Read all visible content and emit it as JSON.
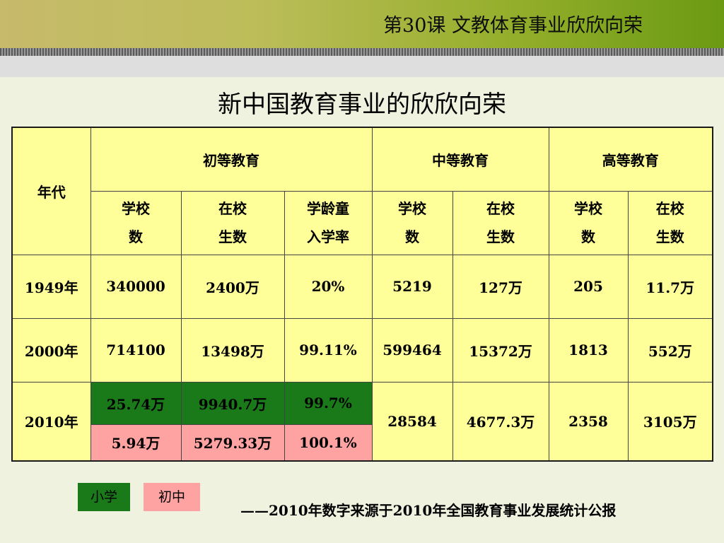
{
  "header": {
    "title": "第30课  文教体育事业欣欣向荣"
  },
  "page_title": "新中国教育事业的欣欣向荣",
  "chart_data": {
    "type": "table",
    "title": "新中国教育事业的欣欣向荣",
    "year_header": "年代",
    "groups": [
      "初等教育",
      "中等教育",
      "高等教育"
    ],
    "subheaders": {
      "primary_schools": [
        "学校",
        "数"
      ],
      "primary_students": [
        "在校",
        "生数"
      ],
      "primary_rate": [
        "学龄童",
        "入学率"
      ],
      "secondary_schools": [
        "学校",
        "数"
      ],
      "secondary_students": [
        "在校",
        "生数"
      ],
      "higher_schools": [
        "学校",
        "数"
      ],
      "higher_students": [
        "在校",
        "生数"
      ]
    },
    "rows": [
      {
        "year": "1949年",
        "cells": [
          "340000",
          "2400万",
          "20%",
          "5219",
          "127万",
          "205",
          "11.7万"
        ]
      },
      {
        "year": "2000年",
        "cells": [
          "714100",
          "13498万",
          "99.11%",
          "599464",
          "15372万",
          "1813",
          "552万"
        ]
      },
      {
        "year": "2010年",
        "primary_school_level": [
          "25.74万",
          "9940.7万",
          "99.7%"
        ],
        "junior_middle_level": [
          "5.94万",
          "5279.33万",
          "100.1%"
        ],
        "cells": [
          "28584",
          "4677.3万",
          "2358",
          "3105万"
        ]
      }
    ],
    "highlight_colors": {
      "primary_school": "#1a7a1a",
      "junior_middle": "#ffa2a2"
    }
  },
  "legend": {
    "primary": "小学",
    "junior": "初中"
  },
  "source": "——2010年数字来源于2010年全国教育事业发展统计公报"
}
